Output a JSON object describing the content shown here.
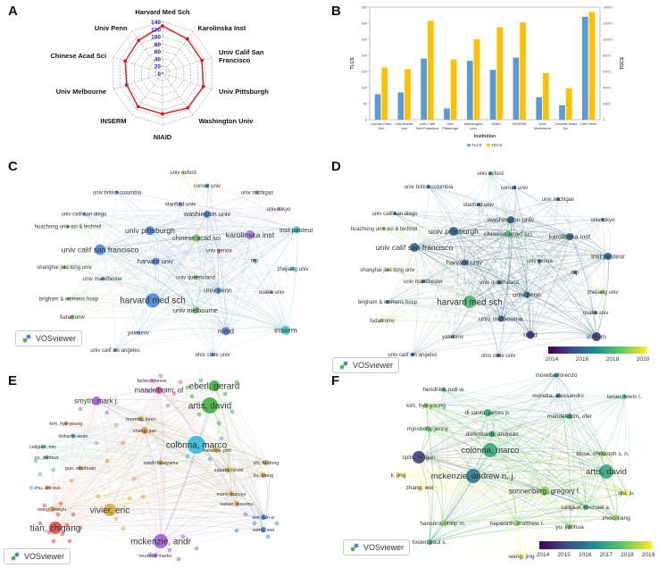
{
  "panels": {
    "a": "A",
    "b": "B",
    "c": "C",
    "d": "D",
    "e": "E",
    "f": "F"
  },
  "vosviewer_label": "VOSviewer",
  "colors": {
    "radar_line": "#d7191c",
    "radar_tick": "#1f1fd6",
    "tlcs": "#5b9bd5",
    "tgcs": "#ffc000",
    "viridis": [
      "#440154",
      "#3b528b",
      "#21908d",
      "#5dc863",
      "#fde725"
    ]
  },
  "chart_data": [
    {
      "id": "A",
      "type": "radar",
      "categories": [
        "Harvard Med Sch",
        "Karolinska Inst",
        "Univ Calif San Francisco",
        "Univ Pittsburgh",
        "Washington Univ",
        "NIAID",
        "INSERM",
        "Univ Melbourne",
        "Chinese Acad Sci",
        "Univ Penn"
      ],
      "values": [
        128,
        114,
        112,
        116,
        116,
        110,
        112,
        102,
        106,
        110
      ],
      "ticks": [
        0,
        20,
        40,
        60,
        80,
        100,
        120,
        140
      ],
      "range": [
        0,
        140
      ]
    },
    {
      "id": "B",
      "type": "bar",
      "categories": [
        "Harvard Med Sch",
        "Karolinska Inst",
        "Univ Calif San Francisco",
        "Univ Pittsburgh",
        "Washington Univ",
        "NIAID",
        "INSERM",
        "Univ Melbourne",
        "Chinese Acad Sci",
        "Univ Penn"
      ],
      "series": [
        {
          "name": "TLCS",
          "axis": "left",
          "values": [
            79,
            85,
            190,
            35,
            183,
            155,
            193,
            70,
            45,
            320
          ]
        },
        {
          "name": "TGCS",
          "axis": "right",
          "values": [
            6500,
            6300,
            12300,
            7500,
            10000,
            11500,
            12100,
            5800,
            3900,
            13400
          ]
        }
      ],
      "xlabel": "Institution",
      "ylabel": "TLCS",
      "ylabel_right": "TGCS",
      "ylim": [
        0,
        350
      ],
      "ylim_right": [
        0,
        14000
      ],
      "yticks": [
        0,
        50,
        100,
        150,
        200,
        250,
        300,
        350
      ],
      "yticks_right": [
        0,
        2000,
        4000,
        6000,
        8000,
        10000,
        12000,
        14000
      ],
      "legend": [
        "TLCS",
        "TGCS"
      ]
    },
    {
      "id": "C",
      "type": "network",
      "nodes": [
        {
          "label": "univ oxford",
          "weight": 1,
          "color": "#d4d93a"
        },
        {
          "label": "cornell univ",
          "weight": 1,
          "color": "#4f86d9"
        },
        {
          "label": "univ british columbia",
          "weight": 1,
          "color": "#4f86d9"
        },
        {
          "label": "univ michigan",
          "weight": 1,
          "color": "#b07fd9"
        },
        {
          "label": "stanford univ",
          "weight": 1,
          "color": "#4f86d9"
        },
        {
          "label": "univ tokyo",
          "weight": 1,
          "color": "#b07fd9"
        },
        {
          "label": "univ calif san diego",
          "weight": 1,
          "color": "#4f86d9"
        },
        {
          "label": "washington univ",
          "weight": 2,
          "color": "#4f86d9"
        },
        {
          "label": "huazhong univ sci & technol",
          "weight": 1,
          "color": "#6dbf4b"
        },
        {
          "label": "univ pittsburgh",
          "weight": 3,
          "color": "#4f86d9"
        },
        {
          "label": "karolinska inst",
          "weight": 3,
          "color": "#b07fd9"
        },
        {
          "label": "chinese acad sci",
          "weight": 2,
          "color": "#6dbf4b"
        },
        {
          "label": "univ calif san francisco",
          "weight": 3,
          "color": "#4f86d9"
        },
        {
          "label": "inst pasteur",
          "weight": 2,
          "color": "#3cc7c0"
        },
        {
          "label": "harvard univ",
          "weight": 2,
          "color": "#4f86d9"
        },
        {
          "label": "univ genoa",
          "weight": 1,
          "color": "#b07fd9"
        },
        {
          "label": "shanghai jiao tong univ",
          "weight": 1,
          "color": "#6dbf4b"
        },
        {
          "label": "nip",
          "weight": 1,
          "color": "#4f86d9"
        },
        {
          "label": "univ manchester",
          "weight": 1,
          "color": "#4f86d9"
        },
        {
          "label": "univ queensland",
          "weight": 1,
          "color": "#6dbf4b"
        },
        {
          "label": "zhejiang univ",
          "weight": 1,
          "color": "#3cc7c0"
        },
        {
          "label": "univ penn",
          "weight": 2,
          "color": "#4f86d9"
        },
        {
          "label": "brigham & womens hosp",
          "weight": 1,
          "color": "#6dbf4b"
        },
        {
          "label": "harvard med sch",
          "weight": 4,
          "color": "#4f86d9"
        },
        {
          "label": "fudan univ",
          "weight": 1,
          "color": "#6dbf4b"
        },
        {
          "label": "osaka univ",
          "weight": 1,
          "color": "#b07fd9"
        },
        {
          "label": "univ melbourne",
          "weight": 2,
          "color": "#6dbf4b"
        },
        {
          "label": "yale univ",
          "weight": 1,
          "color": "#4f86d9"
        },
        {
          "label": "niaid",
          "weight": 3,
          "color": "#4f86d9"
        },
        {
          "label": "inserm",
          "weight": 3,
          "color": "#3cc7c0"
        },
        {
          "label": "univ calif los angeles",
          "weight": 1,
          "color": "#4f86d9"
        },
        {
          "label": "ohio state univ",
          "weight": 1,
          "color": "#4f86d9"
        }
      ]
    },
    {
      "id": "D",
      "type": "network-overlay",
      "colorbar_ticks": [
        "2014",
        "2016",
        "2018",
        "2020"
      ],
      "nodes": [
        {
          "label": "univ oxford",
          "weight": 1,
          "year": 2017
        },
        {
          "label": "univ british columbia",
          "weight": 1,
          "year": 2016
        },
        {
          "label": "cornell univ",
          "weight": 1,
          "year": 2016
        },
        {
          "label": "univ michigan",
          "weight": 1,
          "year": 2016
        },
        {
          "label": "stanford univ",
          "weight": 1,
          "year": 2016
        },
        {
          "label": "univ calif san diego",
          "weight": 1,
          "year": 2016
        },
        {
          "label": "univ tokyo",
          "weight": 1,
          "year": 2016
        },
        {
          "label": "washington univ",
          "weight": 2,
          "year": 2016
        },
        {
          "label": "huazhong univ sci & technol",
          "weight": 1,
          "year": 2019
        },
        {
          "label": "chinese acad sci",
          "weight": 2,
          "year": 2018
        },
        {
          "label": "univ pittsburgh",
          "weight": 3,
          "year": 2016
        },
        {
          "label": "karolinska inst",
          "weight": 2,
          "year": 2016
        },
        {
          "label": "univ calif san francisco",
          "weight": 3,
          "year": 2016
        },
        {
          "label": "harvard univ",
          "weight": 2,
          "year": 2016
        },
        {
          "label": "univ genoa",
          "weight": 1,
          "year": 2016
        },
        {
          "label": "inst pasteur",
          "weight": 2,
          "year": 2016
        },
        {
          "label": "shanghai jiao tong univ",
          "weight": 1,
          "year": 2019
        },
        {
          "label": "nip",
          "weight": 1,
          "year": 2016
        },
        {
          "label": "univ manchester",
          "weight": 1,
          "year": 2016
        },
        {
          "label": "univ queensland",
          "weight": 1,
          "year": 2016
        },
        {
          "label": "univ penn",
          "weight": 2,
          "year": 2016
        },
        {
          "label": "zhejiang univ",
          "weight": 1,
          "year": 2019
        },
        {
          "label": "brigham & womens hosp",
          "weight": 1,
          "year": 2016
        },
        {
          "label": "harvard med sch",
          "weight": 4,
          "year": 2018
        },
        {
          "label": "fudan univ",
          "weight": 1,
          "year": 2019
        },
        {
          "label": "univ melbourne",
          "weight": 2,
          "year": 2016
        },
        {
          "label": "osaka univ",
          "weight": 1,
          "year": 2016
        },
        {
          "label": "yale univ",
          "weight": 1,
          "year": 2016
        },
        {
          "label": "niaid",
          "weight": 2,
          "year": 2015
        },
        {
          "label": "inserm",
          "weight": 2,
          "year": 2015
        },
        {
          "label": "univ calif los angeles",
          "weight": 1,
          "year": 2016
        },
        {
          "label": "ohio state univ",
          "weight": 1,
          "year": 2016
        }
      ]
    },
    {
      "id": "E",
      "type": "network",
      "nodes": [
        {
          "label": "farber, donna",
          "weight": 1,
          "color": "#e45fc7",
          "size": "small"
        },
        {
          "label": "mandelboim, of",
          "weight": 2,
          "color": "#e45fc7",
          "size": "med"
        },
        {
          "label": "eberl, gerard",
          "weight": 3,
          "color": "#3fb33a",
          "size": "big"
        },
        {
          "label": "smyth, mark j.",
          "weight": 2,
          "color": "#a060d6",
          "size": "med"
        },
        {
          "label": "artis, david",
          "weight": 4,
          "color": "#3fb33a",
          "size": "big"
        },
        {
          "label": "kim, hye young",
          "weight": 1,
          "color": "#e8934c",
          "size": "small"
        },
        {
          "label": "moretta, loren",
          "weight": 1,
          "color": "#c9b04d",
          "size": "small"
        },
        {
          "label": "doherty, sean",
          "weight": 1,
          "color": "#4ea5d9",
          "size": "small"
        },
        {
          "label": "zhang, jian",
          "weight": 1,
          "color": "#e8934c",
          "size": "small"
        },
        {
          "label": "colonna, marco",
          "weight": 4,
          "color": "#35b9e0",
          "size": "big"
        },
        {
          "label": "caligiuri, mic",
          "weight": 1,
          "color": "#4ec2a8",
          "size": "small"
        },
        {
          "label": "hansbro, phil",
          "weight": 1,
          "color": "#c9b04d",
          "size": "small"
        },
        {
          "label": "shi, fu-dong",
          "weight": 1,
          "color": "#a89e4e",
          "size": "small"
        },
        {
          "label": "yu, jianhua",
          "weight": 1,
          "color": "#4ec2a8",
          "size": "small"
        },
        {
          "label": "guo, xiaohuan",
          "weight": 1,
          "color": "#e8934c",
          "size": "small"
        },
        {
          "label": "satoh-takayama",
          "weight": 1,
          "color": "#c9b04d",
          "size": "small"
        },
        {
          "label": "sabata, hiroki",
          "weight": 1,
          "color": "#c9b04d",
          "size": "small"
        },
        {
          "label": "liu, qiang",
          "weight": 1,
          "color": "#c9b04d",
          "size": "small"
        },
        {
          "label": "zhu, shi-zuo",
          "weight": 1,
          "color": "#e8934c",
          "size": "small"
        },
        {
          "label": "moro, kazuyo",
          "weight": 1,
          "color": "#c9b04d",
          "size": "small"
        },
        {
          "label": "nakae, susumu",
          "weight": 1,
          "color": "#c9b04d",
          "size": "small"
        },
        {
          "label": "vivier, eric",
          "weight": 3,
          "color": "#d9a93b",
          "size": "big"
        },
        {
          "label": "wang, xiaoyu",
          "weight": 1,
          "color": "#e8934c",
          "size": "small"
        },
        {
          "label": "lee, jian-a",
          "weight": 1,
          "color": "#4f86d9",
          "size": "small"
        },
        {
          "label": "tian, zhigang",
          "weight": 3,
          "color": "#e04a4a",
          "size": "big"
        },
        {
          "label": "wang, wei",
          "weight": 1,
          "color": "#4f86d9",
          "size": "small"
        },
        {
          "label": "mckenzie, andr",
          "weight": 3,
          "color": "#a060d6",
          "size": "big"
        },
        {
          "label": "neurath, marku",
          "weight": 1,
          "color": "#a060d6",
          "size": "small"
        }
      ]
    },
    {
      "id": "F",
      "type": "network-overlay",
      "colorbar_ticks": [
        "2014",
        "2015",
        "2016",
        "2017",
        "2018",
        "2019"
      ],
      "nodes": [
        {
          "label": "moretta, lorenzo",
          "weight": 1,
          "year": 2016
        },
        {
          "label": "hendriks, rudi w.",
          "weight": 1,
          "year": 2017
        },
        {
          "label": "moretta, alessandro",
          "weight": 1,
          "year": 2016
        },
        {
          "label": "lanier, lewis l.",
          "weight": 1,
          "year": 2017
        },
        {
          "label": "kim, hye young",
          "weight": 1,
          "year": 2018
        },
        {
          "label": "di santo, james p.",
          "weight": 1,
          "year": 2017
        },
        {
          "label": "mandelboim, ofer",
          "weight": 1,
          "year": 2017
        },
        {
          "label": "mjosberg, jenny",
          "weight": 1,
          "year": 2018
        },
        {
          "label": "diefenbach, andreas",
          "weight": 1,
          "year": 2017
        },
        {
          "label": "colonna, marco",
          "weight": 3,
          "year": 2017
        },
        {
          "label": "klose, christoph s. n.",
          "weight": 1,
          "year": 2018
        },
        {
          "label": "artis, david",
          "weight": 3,
          "year": 2017
        },
        {
          "label": "li, jing",
          "weight": 1,
          "year": 2019
        },
        {
          "label": "mckenzie, andrew n. j.",
          "weight": 3,
          "year": 2016
        },
        {
          "label": "zhang, wei",
          "weight": 1,
          "year": 2019
        },
        {
          "label": "sonnenberg, gregory f.",
          "weight": 2,
          "year": 2018
        },
        {
          "label": "qiu, ju",
          "weight": 1,
          "year": 2019
        },
        {
          "label": "caligiuri, michael a.",
          "weight": 1,
          "year": 2017
        },
        {
          "label": "zhou, liang",
          "weight": 1,
          "year": 2018
        },
        {
          "label": "hansbro, philip m.",
          "weight": 1,
          "year": 2018
        },
        {
          "label": "hepworth, matthew r.",
          "weight": 1,
          "year": 2018
        },
        {
          "label": "yu, jianhua",
          "weight": 1,
          "year": 2018
        },
        {
          "label": "foster, paul s.",
          "weight": 1,
          "year": 2017
        },
        {
          "label": "wang, jing",
          "weight": 1,
          "year": 2019
        },
        {
          "label": "spits, hergen",
          "weight": 1,
          "year": 2015
        }
      ]
    }
  ]
}
